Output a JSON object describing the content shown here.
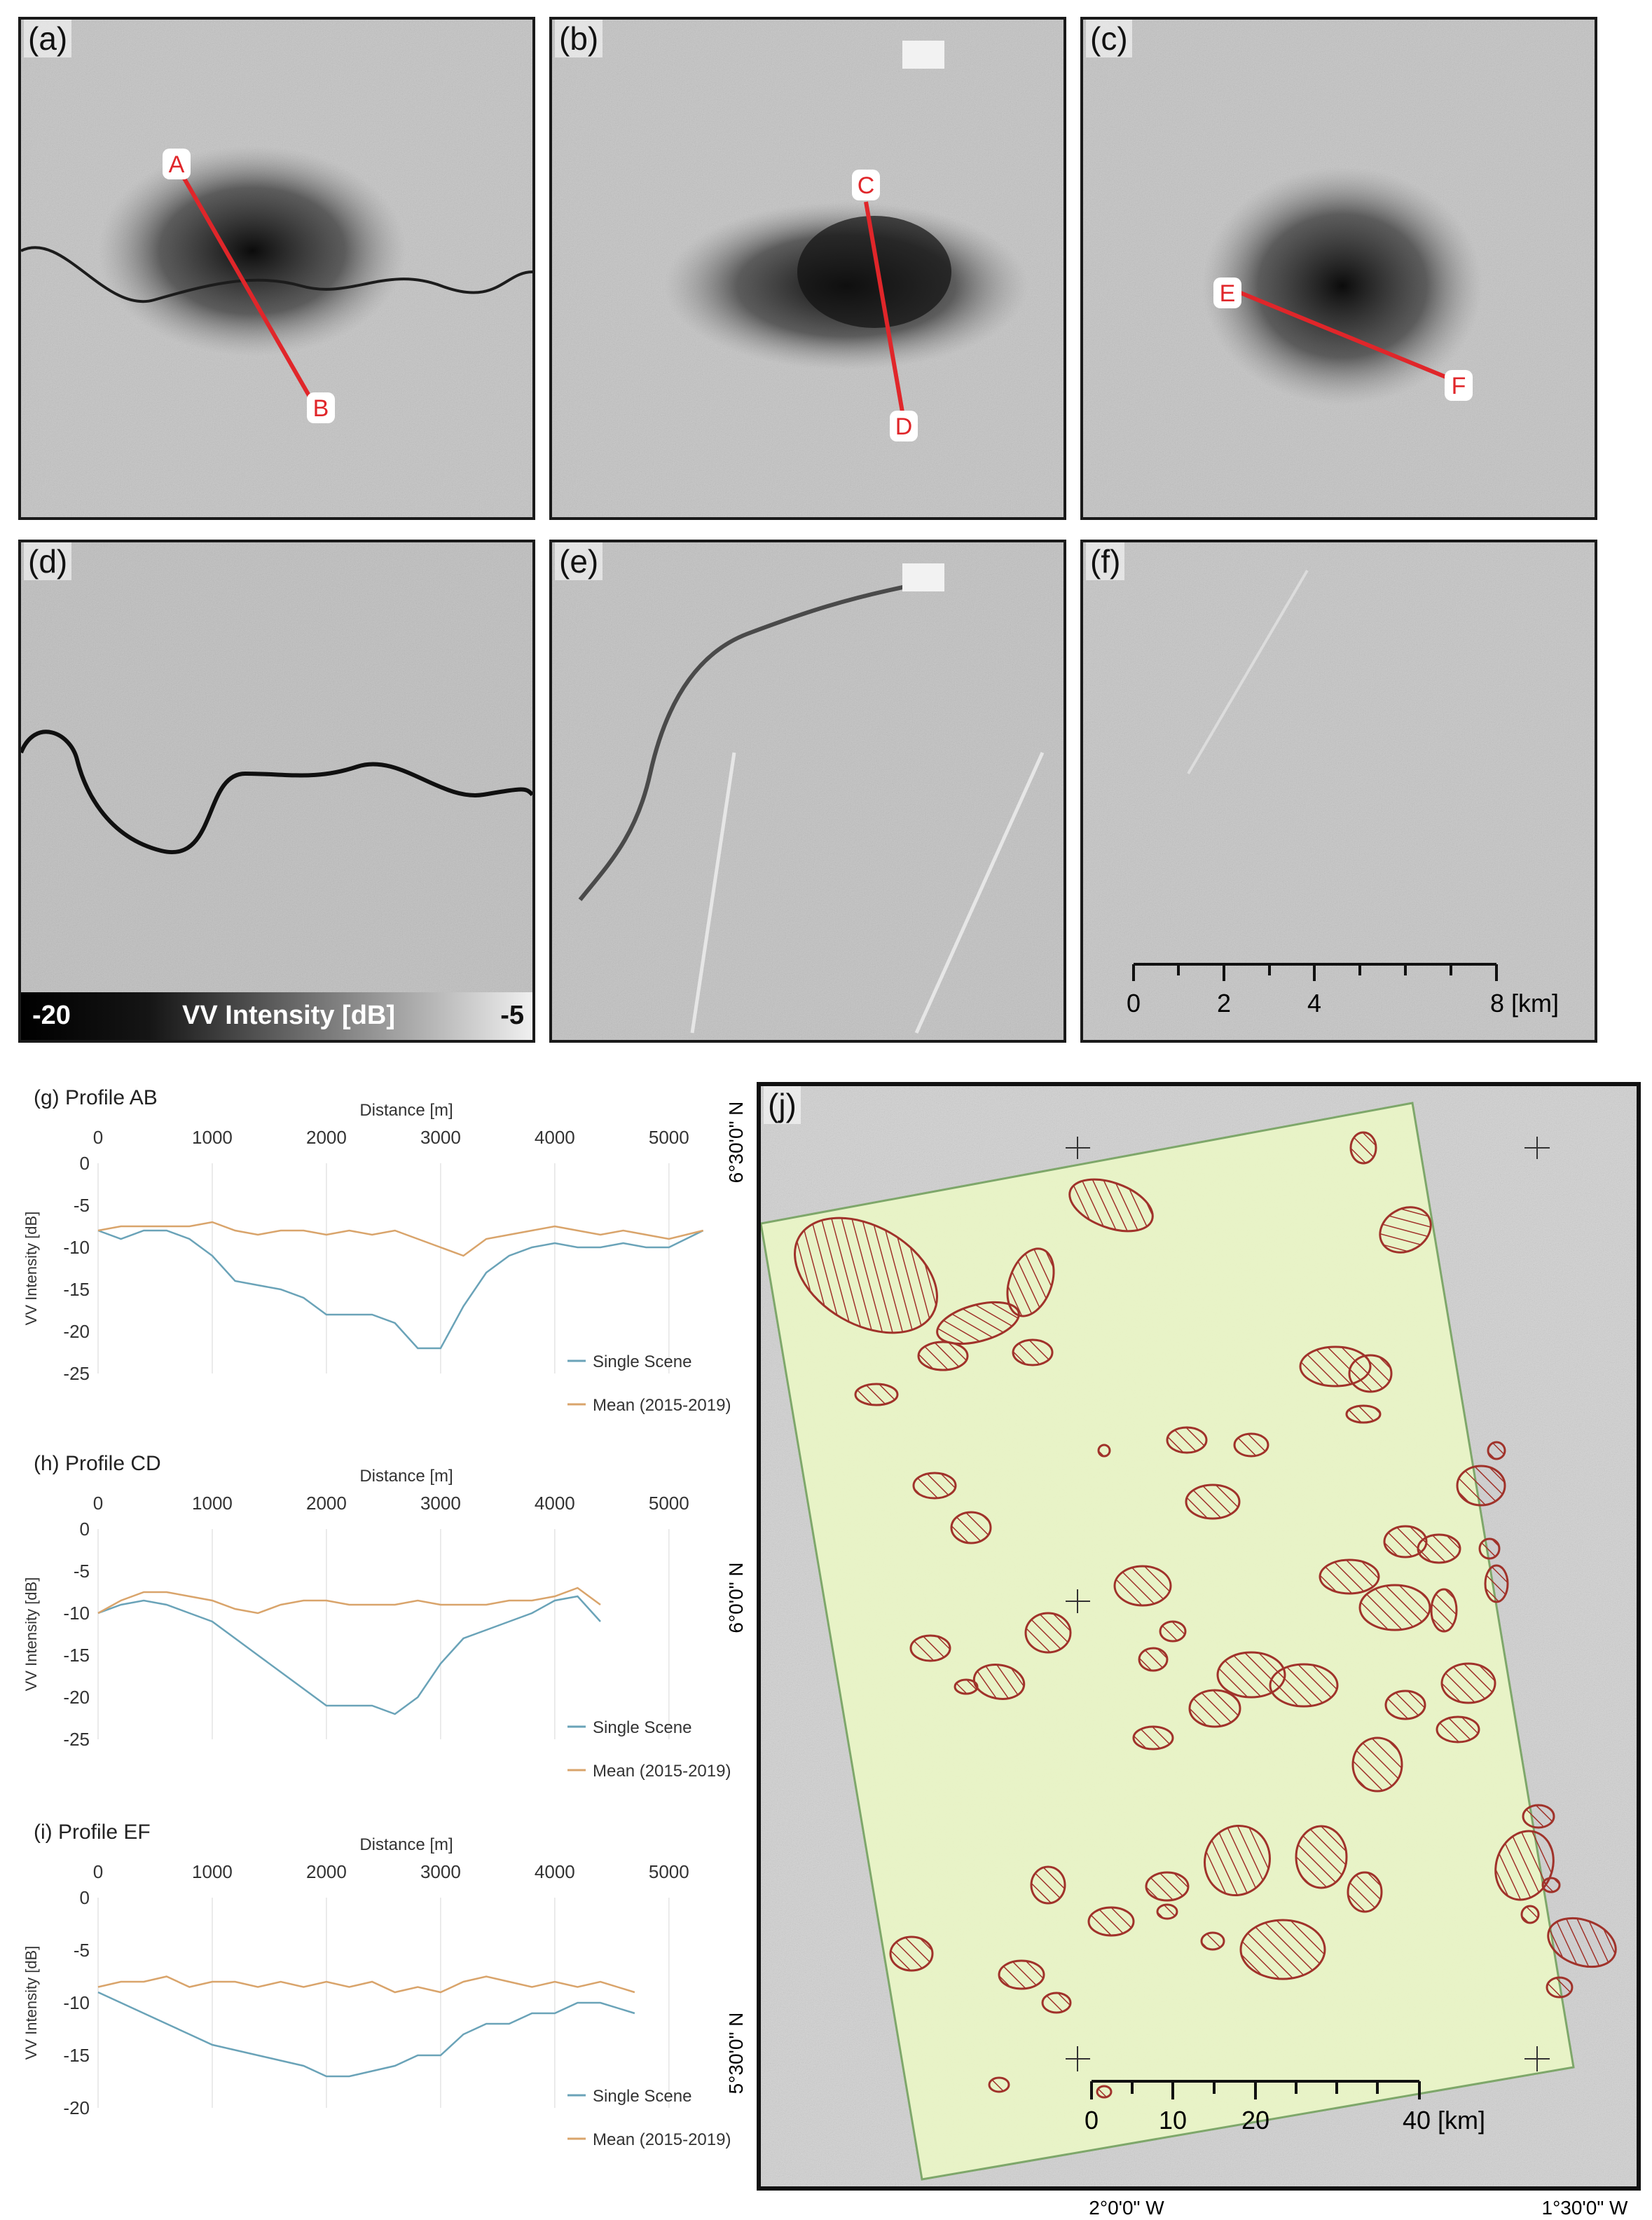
{
  "panels": {
    "a": {
      "label": "(a)",
      "points": [
        "A",
        "B"
      ]
    },
    "b": {
      "label": "(b)",
      "points": [
        "C",
        "D"
      ]
    },
    "c": {
      "label": "(c)",
      "points": [
        "E",
        "F"
      ]
    },
    "d": {
      "label": "(d)"
    },
    "e": {
      "label": "(e)"
    },
    "f": {
      "label": "(f)"
    }
  },
  "colorbar": {
    "min": "-20",
    "title": "VV Intensity [dB]",
    "max": "-5"
  },
  "scalebar_small": {
    "ticks": [
      "0",
      "2",
      "4",
      "8 [km]"
    ]
  },
  "profiles": [
    {
      "title": "(g) Profile AB",
      "xlabel": "Distance [m]",
      "ylabel": "VV Intensity [dB]",
      "xticks": [
        "0",
        "1000",
        "2000",
        "3000",
        "4000",
        "5000"
      ],
      "yticks": [
        "0",
        "-5",
        "-10",
        "-15",
        "-20",
        "-25"
      ],
      "legend": [
        "Single Scene",
        "Mean (2015-2019)"
      ]
    },
    {
      "title": "(h) Profile CD",
      "xlabel": "Distance [m]",
      "ylabel": "VV Intensity [dB]",
      "xticks": [
        "0",
        "1000",
        "2000",
        "3000",
        "4000",
        "5000"
      ],
      "yticks": [
        "0",
        "-5",
        "-10",
        "-15",
        "-20",
        "-25"
      ],
      "legend": [
        "Single Scene",
        "Mean (2015-2019)"
      ]
    },
    {
      "title": "(i) Profile EF",
      "xlabel": "Distance [m]",
      "ylabel": "VV Intensity [dB]",
      "xticks": [
        "0",
        "1000",
        "2000",
        "3000",
        "4000",
        "5000"
      ],
      "yticks": [
        "0",
        "-5",
        "-10",
        "-15",
        "-20"
      ],
      "legend": [
        "Single Scene",
        "Mean (2015-2019)"
      ]
    }
  ],
  "chart_data": [
    {
      "type": "line",
      "title": "(g) Profile AB",
      "xlabel": "Distance [m]",
      "ylabel": "VV Intensity [dB]",
      "xlim": [
        0,
        5400
      ],
      "ylim": [
        -25,
        0
      ],
      "series": [
        {
          "name": "Single Scene",
          "color": "#6aa3b8",
          "x": [
            0,
            200,
            400,
            600,
            800,
            1000,
            1200,
            1400,
            1600,
            1800,
            2000,
            2200,
            2400,
            2600,
            2800,
            3000,
            3200,
            3400,
            3600,
            3800,
            4000,
            4200,
            4400,
            4600,
            4800,
            5000,
            5300
          ],
          "y": [
            -8,
            -9,
            -8,
            -8,
            -9,
            -11,
            -14,
            -14.5,
            -15,
            -16,
            -18,
            -18,
            -18,
            -19,
            -22,
            -22,
            -17,
            -13,
            -11,
            -10,
            -9.5,
            -10,
            -10,
            -9.5,
            -10,
            -10,
            -8
          ]
        },
        {
          "name": "Mean (2015-2019)",
          "color": "#d9a46b",
          "x": [
            0,
            200,
            400,
            600,
            800,
            1000,
            1200,
            1400,
            1600,
            1800,
            2000,
            2200,
            2400,
            2600,
            2800,
            3000,
            3200,
            3400,
            3600,
            3800,
            4000,
            4200,
            4400,
            4600,
            4800,
            5000,
            5300
          ],
          "y": [
            -8,
            -7.5,
            -7.5,
            -7.5,
            -7.5,
            -7,
            -8,
            -8.5,
            -8,
            -8,
            -8.5,
            -8,
            -8.5,
            -8,
            -9,
            -10,
            -11,
            -9,
            -8.5,
            -8,
            -7.5,
            -8,
            -8.5,
            -8,
            -8.5,
            -9,
            -8
          ]
        }
      ]
    },
    {
      "type": "line",
      "title": "(h) Profile CD",
      "xlabel": "Distance [m]",
      "ylabel": "VV Intensity [dB]",
      "xlim": [
        0,
        5400
      ],
      "ylim": [
        -25,
        0
      ],
      "series": [
        {
          "name": "Single Scene",
          "color": "#6aa3b8",
          "x": [
            0,
            200,
            400,
            600,
            800,
            1000,
            1200,
            1400,
            1600,
            1800,
            2000,
            2200,
            2400,
            2600,
            2800,
            3000,
            3200,
            3400,
            3600,
            3800,
            4000,
            4200,
            4400
          ],
          "y": [
            -10,
            -9,
            -8.5,
            -9,
            -10,
            -11,
            -13,
            -15,
            -17,
            -19,
            -21,
            -21,
            -21,
            -22,
            -20,
            -16,
            -13,
            -12,
            -11,
            -10,
            -8.5,
            -8,
            -11
          ]
        },
        {
          "name": "Mean (2015-2019)",
          "color": "#d9a46b",
          "x": [
            0,
            200,
            400,
            600,
            800,
            1000,
            1200,
            1400,
            1600,
            1800,
            2000,
            2200,
            2400,
            2600,
            2800,
            3000,
            3200,
            3400,
            3600,
            3800,
            4000,
            4200,
            4400
          ],
          "y": [
            -10,
            -8.5,
            -7.5,
            -7.5,
            -8,
            -8.5,
            -9.5,
            -10,
            -9,
            -8.5,
            -8.5,
            -9,
            -9,
            -9,
            -8.5,
            -9,
            -9,
            -9,
            -8.5,
            -8.5,
            -8,
            -7,
            -9
          ]
        }
      ]
    },
    {
      "type": "line",
      "title": "(i) Profile EF",
      "xlabel": "Distance [m]",
      "ylabel": "VV Intensity [dB]",
      "xlim": [
        0,
        5400
      ],
      "ylim": [
        -20,
        0
      ],
      "series": [
        {
          "name": "Single Scene",
          "color": "#6aa3b8",
          "x": [
            0,
            200,
            400,
            600,
            800,
            1000,
            1200,
            1400,
            1600,
            1800,
            2000,
            2200,
            2400,
            2600,
            2800,
            3000,
            3200,
            3400,
            3600,
            3800,
            4000,
            4200,
            4400,
            4700
          ],
          "y": [
            -9,
            -10,
            -11,
            -12,
            -13,
            -14,
            -14.5,
            -15,
            -15.5,
            -16,
            -17,
            -17,
            -16.5,
            -16,
            -15,
            -15,
            -13,
            -12,
            -12,
            -11,
            -11,
            -10,
            -10,
            -11
          ]
        },
        {
          "name": "Mean (2015-2019)",
          "color": "#d9a46b",
          "x": [
            0,
            200,
            400,
            600,
            800,
            1000,
            1200,
            1400,
            1600,
            1800,
            2000,
            2200,
            2400,
            2600,
            2800,
            3000,
            3200,
            3400,
            3600,
            3800,
            4000,
            4200,
            4400,
            4700
          ],
          "y": [
            -8.5,
            -8,
            -8,
            -7.5,
            -8.5,
            -8,
            -8,
            -8.5,
            -8,
            -8.5,
            -8,
            -8.5,
            -8,
            -9,
            -8.5,
            -9,
            -8,
            -7.5,
            -8,
            -8.5,
            -8,
            -8.5,
            -8,
            -9
          ]
        }
      ]
    }
  ],
  "map": {
    "label": "(j)",
    "lat_labels": [
      "6°30'0\" N",
      "6°0'0\" N",
      "5°30'0\" N"
    ],
    "lon_labels": [
      "2°0'0\" W",
      "1°30'0\" W"
    ],
    "scalebar_ticks": [
      "0",
      "10",
      "20",
      "40 [km]"
    ]
  }
}
